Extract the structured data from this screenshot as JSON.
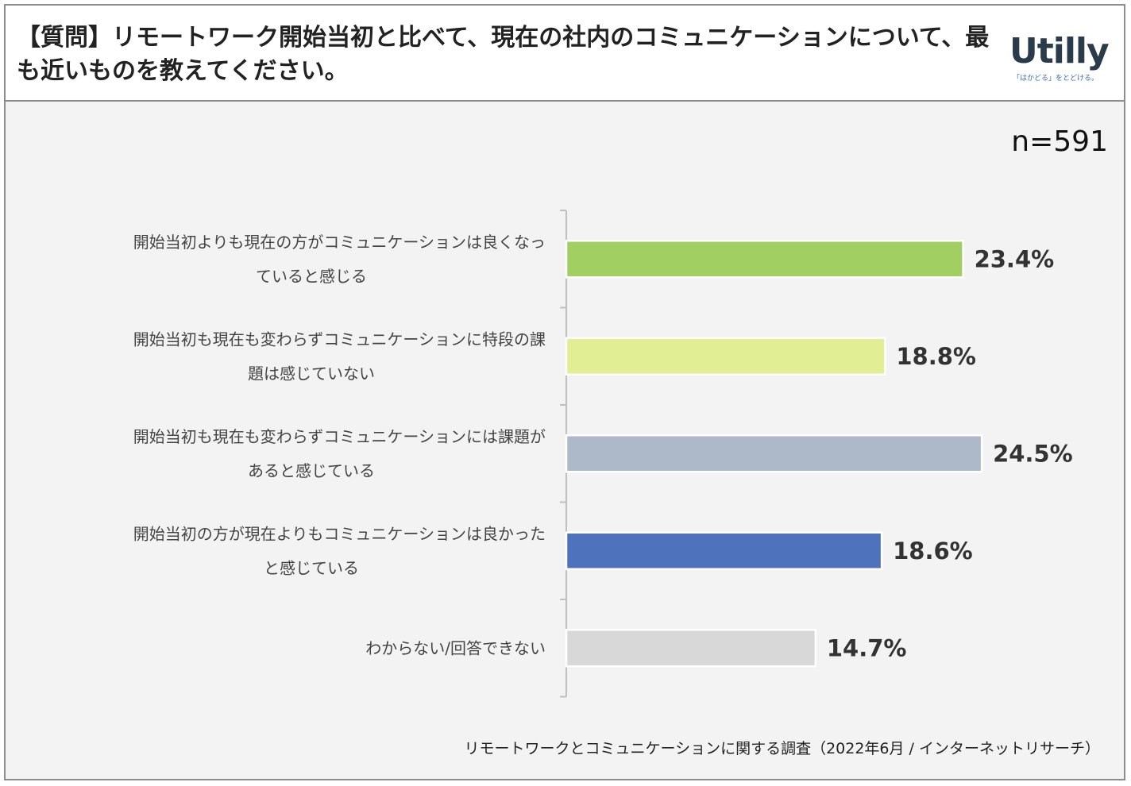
{
  "header": {
    "title": "【質問】リモートワーク開始当初と比べて、現在の社内のコミュニケーションについて、最も近いものを教えてください。",
    "logo_text": "Utilly",
    "logo_tagline": "「はかどる」をとどける。"
  },
  "sample_size_label": "n=591",
  "source_note": "リモートワークとコミュニケーションに関する調査（2022年6月 / インターネットリサーチ）",
  "colors": {
    "bar1": "#a1cf62",
    "bar2": "#e1ee94",
    "bar3": "#adb8c8",
    "bar4": "#4f72bd",
    "bar5": "#d8d8d8",
    "axis": "#bfbfbf",
    "panel_bg": "#f3f3f3"
  },
  "chart_data": {
    "type": "bar",
    "orientation": "horizontal",
    "title": "【質問】リモートワーク開始当初と比べて、現在の社内のコミュニケーションについて、最も近いものを教えてください。",
    "xlabel": "",
    "ylabel": "",
    "xlim": [
      0,
      30
    ],
    "grid": false,
    "legend": "none",
    "unit": "%",
    "categories": [
      [
        "開始当初よりも現在の方がコミュニケーションは良くなっ",
        "ていると感じる"
      ],
      [
        "開始当初も現在も変わらずコミュニケーションに特段の課",
        "題は感じていない"
      ],
      [
        "開始当初も現在も変わらずコミュニケーションには課題が",
        "あると感じている"
      ],
      [
        "開始当初の方が現在よりもコミュニケーションは良かった",
        "と感じている"
      ],
      [
        "わからない/回答できない"
      ]
    ],
    "values": [
      23.4,
      18.8,
      24.5,
      18.6,
      14.7
    ],
    "value_labels": [
      "23.4%",
      "18.8%",
      "24.5%",
      "18.6%",
      "14.7%"
    ]
  }
}
